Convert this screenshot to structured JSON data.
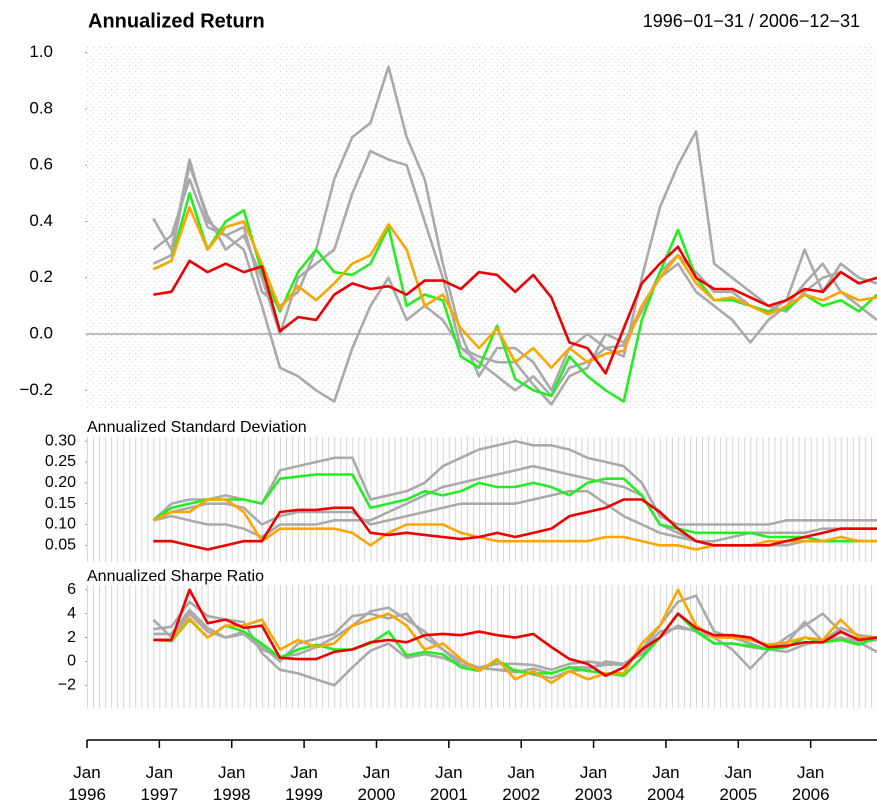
{
  "chart_data": [
    {
      "type": "line",
      "title": "Annualized Return",
      "subtitle": "1996−01−31 / 2006−12−31",
      "x": [
        "1996-12",
        "1997-03",
        "1997-06",
        "1997-09",
        "1997-12",
        "1998-03",
        "1998-06",
        "1998-09",
        "1998-12",
        "1999-03",
        "1999-06",
        "1999-09",
        "1999-12",
        "2000-03",
        "2000-06",
        "2000-09",
        "2000-12",
        "2001-03",
        "2001-06",
        "2001-09",
        "2001-12",
        "2002-03",
        "2002-06",
        "2002-09",
        "2002-12",
        "2003-03",
        "2003-06",
        "2003-09",
        "2003-12",
        "2004-03",
        "2004-06",
        "2004-09",
        "2004-12",
        "2005-03",
        "2005-06",
        "2005-09",
        "2005-12",
        "2006-03",
        "2006-06",
        "2006-09",
        "2006-12"
      ],
      "xlim": [
        "1996-01",
        "2006-12"
      ],
      "grid": true,
      "baseline": 0,
      "ylim": [
        -0.27,
        1.02
      ],
      "yticks": [
        {
          "value": 1,
          "label": "1.0"
        },
        0.8,
        0.6,
        0.4,
        0.2,
        {
          "value": 0,
          "label": "0.0"
        },
        {
          "value": -0.2,
          "label": "−0.2"
        }
      ],
      "series": [
        {
          "color": "#aaaaaa",
          "values": [
            0.41,
            0.3,
            0.62,
            0.4,
            0.35,
            0.38,
            0.15,
            0.1,
            0.15,
            0.3,
            0.55,
            0.7,
            0.75,
            0.95,
            0.7,
            0.55,
            0.25,
            0.0,
            -0.15,
            -0.05,
            -0.05,
            -0.1,
            -0.2,
            -0.05,
            0.0,
            -0.05,
            -0.08,
            0.2,
            0.45,
            0.6,
            0.72,
            0.25,
            0.2,
            0.15,
            0.1,
            0.08,
            0.15,
            0.2,
            0.22,
            0.18,
            0.2
          ]
        },
        {
          "color": "#aaaaaa",
          "values": [
            0.3,
            0.35,
            0.55,
            0.38,
            0.35,
            0.3,
            0.1,
            -0.12,
            -0.15,
            -0.2,
            -0.24,
            -0.05,
            0.1,
            0.2,
            0.05,
            0.1,
            0.05,
            -0.05,
            -0.1,
            -0.15,
            -0.2,
            -0.15,
            -0.22,
            -0.12,
            -0.1,
            -0.05,
            -0.04,
            0.1,
            0.2,
            0.25,
            0.15,
            0.1,
            0.05,
            -0.03,
            0.05,
            0.1,
            0.18,
            0.25,
            0.15,
            0.1,
            0.05
          ]
        },
        {
          "color": "#aaaaaa",
          "values": [
            0.25,
            0.28,
            0.6,
            0.42,
            0.3,
            0.35,
            0.2,
            0.0,
            0.2,
            0.25,
            0.3,
            0.5,
            0.65,
            0.62,
            0.6,
            0.4,
            0.2,
            -0.05,
            -0.08,
            -0.1,
            -0.1,
            -0.18,
            -0.25,
            -0.15,
            -0.12,
            0.0,
            -0.03,
            0.08,
            0.22,
            0.28,
            0.22,
            0.15,
            0.15,
            0.1,
            0.08,
            0.12,
            0.3,
            0.15,
            0.25,
            0.2,
            0.18
          ]
        },
        {
          "color": "#22ee22",
          "values": [
            0.23,
            0.26,
            0.5,
            0.3,
            0.4,
            0.44,
            0.22,
            0.08,
            0.22,
            0.3,
            0.22,
            0.21,
            0.25,
            0.38,
            0.1,
            0.14,
            0.12,
            -0.08,
            -0.12,
            0.03,
            -0.16,
            -0.2,
            -0.22,
            -0.08,
            -0.15,
            -0.2,
            -0.24,
            0.05,
            0.22,
            0.37,
            0.2,
            0.12,
            0.12,
            0.1,
            0.08,
            0.09,
            0.14,
            0.1,
            0.12,
            0.08,
            0.14
          ]
        },
        {
          "color": "#ffa500",
          "values": [
            0.23,
            0.26,
            0.45,
            0.3,
            0.38,
            0.4,
            0.25,
            0.09,
            0.17,
            0.12,
            0.18,
            0.25,
            0.28,
            0.39,
            0.3,
            0.1,
            0.14,
            0.02,
            -0.05,
            0.02,
            -0.1,
            -0.05,
            -0.12,
            -0.05,
            -0.1,
            -0.07,
            -0.06,
            0.1,
            0.2,
            0.28,
            0.18,
            0.12,
            0.13,
            0.1,
            0.07,
            0.1,
            0.14,
            0.12,
            0.15,
            0.12,
            0.13
          ]
        },
        {
          "color": "#ee0000",
          "values": [
            0.14,
            0.15,
            0.26,
            0.22,
            0.25,
            0.22,
            0.24,
            0.01,
            0.06,
            0.05,
            0.14,
            0.18,
            0.16,
            0.17,
            0.14,
            0.19,
            0.19,
            0.16,
            0.22,
            0.21,
            0.15,
            0.21,
            0.13,
            -0.03,
            -0.05,
            -0.14,
            0.02,
            0.18,
            0.25,
            0.31,
            0.2,
            0.16,
            0.16,
            0.13,
            0.1,
            0.12,
            0.16,
            0.15,
            0.22,
            0.18,
            0.2
          ]
        }
      ]
    },
    {
      "type": "line",
      "title": "Annualized Standard Deviation",
      "ylim": [
        0.01,
        0.31
      ],
      "yticks": [
        {
          "value": 0.3,
          "label": "0.30"
        },
        0.25,
        {
          "value": 0.2,
          "label": "0.20"
        },
        0.15,
        {
          "value": 0.1,
          "label": "0.10"
        },
        0.05
      ],
      "series": [
        {
          "color": "#aaaaaa",
          "values": [
            0.11,
            0.15,
            0.16,
            0.16,
            0.17,
            0.16,
            0.15,
            0.23,
            0.24,
            0.25,
            0.26,
            0.26,
            0.16,
            0.17,
            0.18,
            0.2,
            0.24,
            0.26,
            0.28,
            0.29,
            0.3,
            0.29,
            0.29,
            0.28,
            0.26,
            0.25,
            0.24,
            0.2,
            0.12,
            0.1,
            0.1,
            0.1,
            0.1,
            0.1,
            0.1,
            0.11,
            0.11,
            0.11,
            0.11,
            0.11,
            0.11
          ]
        },
        {
          "color": "#aaaaaa",
          "values": [
            0.11,
            0.12,
            0.11,
            0.1,
            0.1,
            0.09,
            0.07,
            0.1,
            0.1,
            0.1,
            0.11,
            0.11,
            0.11,
            0.13,
            0.15,
            0.17,
            0.19,
            0.2,
            0.21,
            0.22,
            0.23,
            0.24,
            0.23,
            0.22,
            0.21,
            0.2,
            0.19,
            0.17,
            0.1,
            0.08,
            0.06,
            0.05,
            0.05,
            0.05,
            0.05,
            0.05,
            0.06,
            0.06,
            0.06,
            0.06,
            0.06
          ]
        },
        {
          "color": "#aaaaaa",
          "values": [
            0.11,
            0.13,
            0.14,
            0.15,
            0.15,
            0.14,
            0.1,
            0.12,
            0.13,
            0.13,
            0.13,
            0.13,
            0.1,
            0.11,
            0.12,
            0.13,
            0.14,
            0.15,
            0.15,
            0.15,
            0.15,
            0.16,
            0.17,
            0.18,
            0.18,
            0.15,
            0.12,
            0.1,
            0.08,
            0.07,
            0.06,
            0.06,
            0.07,
            0.08,
            0.08,
            0.08,
            0.08,
            0.09,
            0.09,
            0.09,
            0.09
          ]
        },
        {
          "color": "#22ee22",
          "values": [
            0.11,
            0.14,
            0.15,
            0.16,
            0.16,
            0.16,
            0.15,
            0.21,
            0.215,
            0.22,
            0.22,
            0.22,
            0.14,
            0.15,
            0.16,
            0.18,
            0.17,
            0.18,
            0.2,
            0.19,
            0.19,
            0.2,
            0.19,
            0.17,
            0.2,
            0.21,
            0.21,
            0.17,
            0.1,
            0.09,
            0.08,
            0.08,
            0.08,
            0.08,
            0.07,
            0.07,
            0.07,
            0.06,
            0.06,
            0.06,
            0.06
          ]
        },
        {
          "color": "#ffa500",
          "values": [
            0.11,
            0.13,
            0.13,
            0.16,
            0.16,
            0.13,
            0.06,
            0.09,
            0.09,
            0.09,
            0.09,
            0.08,
            0.05,
            0.08,
            0.1,
            0.1,
            0.1,
            0.08,
            0.07,
            0.06,
            0.06,
            0.06,
            0.06,
            0.06,
            0.06,
            0.07,
            0.07,
            0.06,
            0.05,
            0.05,
            0.04,
            0.05,
            0.05,
            0.05,
            0.06,
            0.06,
            0.06,
            0.06,
            0.07,
            0.06,
            0.06
          ]
        },
        {
          "color": "#ee0000",
          "values": [
            0.06,
            0.06,
            0.05,
            0.04,
            0.05,
            0.06,
            0.06,
            0.13,
            0.135,
            0.135,
            0.14,
            0.14,
            0.08,
            0.075,
            0.08,
            0.075,
            0.07,
            0.065,
            0.07,
            0.08,
            0.07,
            0.08,
            0.09,
            0.12,
            0.13,
            0.14,
            0.16,
            0.16,
            0.13,
            0.09,
            0.06,
            0.05,
            0.05,
            0.05,
            0.05,
            0.06,
            0.07,
            0.08,
            0.09,
            0.09,
            0.09
          ]
        }
      ]
    },
    {
      "type": "line",
      "title": "Annualized Sharpe Ratio",
      "ylim": [
        -3.9,
        6.4
      ],
      "yticks": [
        6,
        4,
        2,
        0,
        {
          "value": -2,
          "label": "−2"
        }
      ],
      "xticks": [
        {
          "value": "1996-01",
          "label": "Jan 1996"
        },
        {
          "value": "1997-01",
          "label": "Jan 1997"
        },
        {
          "value": "1998-01",
          "label": "Jan 1998"
        },
        {
          "value": "1999-01",
          "label": "Jan 1999"
        },
        {
          "value": "2000-01",
          "label": "Jan 2000"
        },
        {
          "value": "2001-01",
          "label": "Jan 2001"
        },
        {
          "value": "2002-01",
          "label": "Jan 2002"
        },
        {
          "value": "2003-01",
          "label": "Jan 2003"
        },
        {
          "value": "2004-01",
          "label": "Jan 2004"
        },
        {
          "value": "2005-01",
          "label": "Jan 2005"
        },
        {
          "value": "2006-01",
          "label": "Jan 2006"
        }
      ],
      "series": [
        {
          "color": "#aaaaaa",
          "values": [
            3.5,
            2.0,
            4.0,
            2.5,
            2.0,
            2.3,
            1.0,
            0.4,
            0.6,
            1.2,
            2.0,
            3.0,
            4.2,
            4.5,
            3.5,
            2.5,
            1.0,
            0.0,
            -0.5,
            -0.2,
            -0.2,
            -0.3,
            -0.7,
            -0.2,
            0.0,
            -0.2,
            -0.3,
            1.0,
            3.0,
            5.0,
            5.5,
            2.5,
            2.0,
            1.5,
            1.0,
            0.8,
            1.4,
            1.8,
            2.0,
            1.6,
            1.8
          ]
        },
        {
          "color": "#aaaaaa",
          "values": [
            2.7,
            2.9,
            5.0,
            3.8,
            3.5,
            3.3,
            0.7,
            -0.7,
            -1.0,
            -1.5,
            -2.0,
            -0.5,
            0.9,
            1.5,
            0.3,
            0.6,
            0.3,
            -0.3,
            -0.5,
            -0.7,
            -0.9,
            -0.6,
            -1.0,
            -0.5,
            -0.5,
            -0.3,
            -0.2,
            0.6,
            2.0,
            3.0,
            2.5,
            2.0,
            1.0,
            -0.6,
            1.0,
            2.0,
            3.0,
            4.0,
            2.5,
            1.6,
            0.8
          ]
        },
        {
          "color": "#aaaaaa",
          "values": [
            2.3,
            2.3,
            4.3,
            2.8,
            2.0,
            2.5,
            1.3,
            0.0,
            1.5,
            1.9,
            2.3,
            3.8,
            4.0,
            3.6,
            4.0,
            2.0,
            1.0,
            -0.3,
            -0.5,
            -0.7,
            -0.7,
            -1.1,
            -1.4,
            -0.8,
            -0.7,
            0.0,
            -0.2,
            0.8,
            2.5,
            2.8,
            2.6,
            1.5,
            1.5,
            1.2,
            1.0,
            1.5,
            3.3,
            1.7,
            2.8,
            2.2,
            2.0
          ]
        },
        {
          "color": "#22ee22",
          "values": [
            1.8,
            1.7,
            3.5,
            2.0,
            3.0,
            2.5,
            1.5,
            0.3,
            1.0,
            1.4,
            1.0,
            1.0,
            1.5,
            2.5,
            0.5,
            0.8,
            0.6,
            -0.5,
            -0.8,
            0.1,
            -0.8,
            -1.0,
            -1.0,
            -0.5,
            -0.8,
            -1.0,
            -1.2,
            0.3,
            2.0,
            4.0,
            2.5,
            1.5,
            1.5,
            1.3,
            1.0,
            1.2,
            2.0,
            1.6,
            1.8,
            1.4,
            2.0
          ]
        },
        {
          "color": "#ffa500",
          "values": [
            1.8,
            1.8,
            3.6,
            2.0,
            3.0,
            3.0,
            3.5,
            1.0,
            1.8,
            1.2,
            1.5,
            3.0,
            3.5,
            4.0,
            3.0,
            1.0,
            1.5,
            0.2,
            -0.8,
            0.2,
            -1.5,
            -0.8,
            -1.8,
            -0.8,
            -1.5,
            -1.0,
            -1.0,
            1.5,
            3.0,
            6.0,
            3.0,
            2.0,
            2.0,
            1.8,
            1.4,
            1.6,
            2.0,
            1.8,
            3.5,
            2.0,
            2.0
          ]
        },
        {
          "color": "#ee0000",
          "values": [
            1.8,
            1.8,
            6.0,
            3.2,
            3.5,
            2.8,
            3.0,
            0.3,
            0.2,
            0.2,
            0.8,
            1.0,
            1.6,
            1.8,
            1.6,
            2.2,
            2.3,
            2.2,
            2.5,
            2.2,
            2.0,
            2.3,
            1.2,
            0.2,
            -0.2,
            -1.2,
            -0.5,
            1.0,
            2.0,
            4.0,
            2.8,
            2.2,
            2.2,
            2.0,
            1.2,
            1.3,
            1.6,
            1.6,
            2.5,
            1.8,
            2.0
          ]
        }
      ]
    }
  ]
}
